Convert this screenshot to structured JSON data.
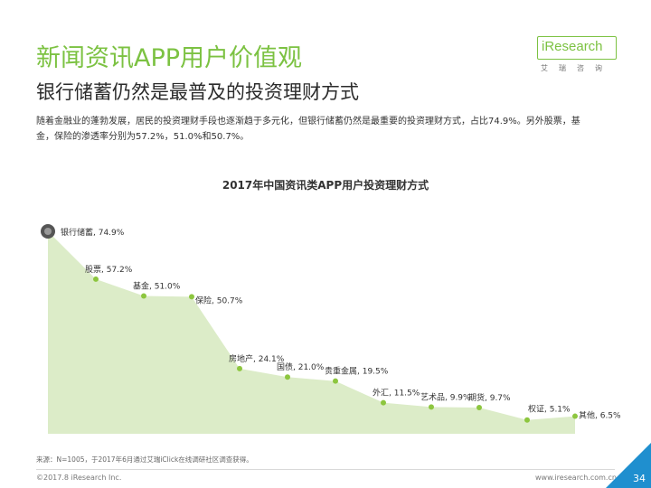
{
  "header": {
    "title": "新闻资讯APP用户价值观",
    "subtitle": "银行储蓄仍然是最普及的投资理财方式",
    "description": "随着金融业的蓬勃发展，居民的投资理财手段也逐渐趋于多元化，但银行储蓄仍然是最重要的投资理财方式，占比74.9%。另外股票，基金，保险的渗透率分别为57.2%，51.0%和50.7%。"
  },
  "logo": {
    "brand": "iResearch",
    "subtitle": "艾瑞咨询"
  },
  "chart_data": {
    "type": "area",
    "title": "2017年中国资讯类APP用户投资理财方式",
    "categories": [
      "银行储蓄",
      "股票",
      "基金",
      "保险",
      "房地产",
      "国债",
      "贵重金属",
      "外汇",
      "艺术品",
      "期货",
      "权证",
      "其他"
    ],
    "values": [
      74.9,
      57.2,
      51.0,
      50.7,
      24.1,
      21.0,
      19.5,
      11.5,
      9.9,
      9.7,
      5.1,
      6.5
    ],
    "labels": [
      "银行储蓄, 74.9%",
      "股票, 57.2%",
      "基金, 51.0%",
      "保险, 50.7%",
      "房地产, 24.1%",
      "国债, 21.0%",
      "贵重金属, 19.5%",
      "外汇, 11.5%",
      "艺术品, 9.9%",
      "期货, 9.7%",
      "权证, 5.1%",
      "其他, 6.5%"
    ],
    "unit": "%",
    "ylim": [
      0,
      80
    ],
    "grid": false,
    "legend": "none",
    "colors": {
      "area": "#dcecc8",
      "marker": "#8dc63f",
      "first_marker": "#555555"
    }
  },
  "footer": {
    "source": "来源：N=1005，于2017年6月通过艾瑞iClick在线调研社区调查获得。",
    "copyright": "©2017.8 iResearch Inc.",
    "website": "www.iresearch.com.cn",
    "page_number": "34"
  },
  "colors": {
    "accent": "#7cc242",
    "corner": "#1f8fcf"
  }
}
